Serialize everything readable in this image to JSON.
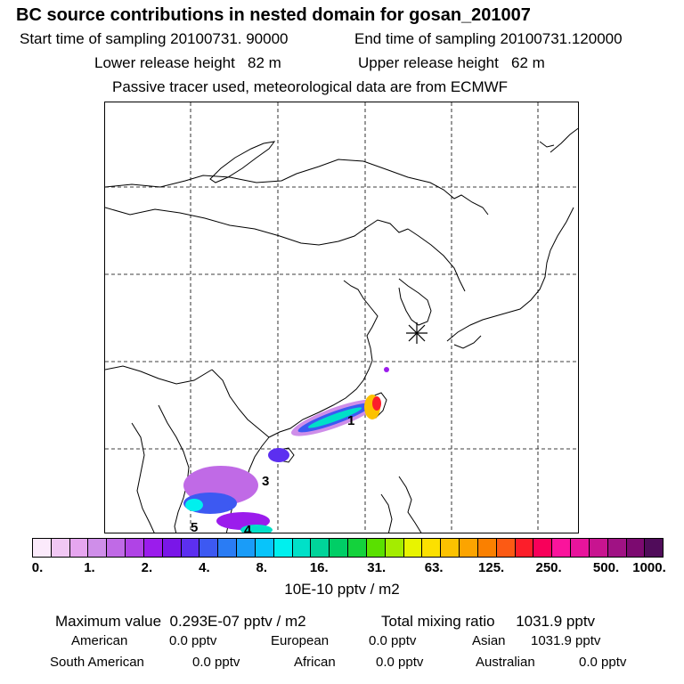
{
  "title": "BC  source contributions in nested domain for gosan_201007",
  "header": {
    "start_label": "Start time of sampling",
    "start_value": "20100731. 90000",
    "end_label": "End time of sampling",
    "end_value": "20100731.120000",
    "lower_label": "Lower release height",
    "lower_value": "82 m",
    "upper_label": "Upper release height",
    "upper_value": "62 m",
    "note": "Passive tracer used, meteorological data are from ECMWF"
  },
  "map": {
    "site_marker": "receptor-asterisk",
    "labels": [
      "1",
      "3",
      "5",
      "4"
    ]
  },
  "colorbar": {
    "colors": [
      "#fbeafb",
      "#f1c8f4",
      "#e6a6ef",
      "#cf8ee9",
      "#c06ae6",
      "#b043e6",
      "#9b1cec",
      "#7a16e8",
      "#5c2ff0",
      "#3d59f2",
      "#2a7cf4",
      "#1a9cf8",
      "#08c4fa",
      "#00f0ee",
      "#00e0c8",
      "#00d49a",
      "#00ce66",
      "#14d23c",
      "#5ae000",
      "#a4ec00",
      "#e8f400",
      "#fce000",
      "#fcc200",
      "#fca400",
      "#fa8000",
      "#fc5a14",
      "#fc1e2a",
      "#f8005a",
      "#fa149c",
      "#e8149c",
      "#c81490",
      "#a01284",
      "#7c0a70",
      "#500c5a"
    ],
    "ticks": [
      "0.",
      "1.",
      "2.",
      "4.",
      "8.",
      "16.",
      "31.",
      "63.",
      "125.",
      "250.",
      "500.",
      "1000."
    ],
    "unit": "10E-10 pptv / m2"
  },
  "summary": {
    "max_label": "Maximum value",
    "max_value": "0.293E-07 pptv / m2",
    "total_label": "Total mixing ratio",
    "total_value": "1031.9 pptv",
    "regions": [
      {
        "name": "American",
        "value": "0.0 pptv"
      },
      {
        "name": "European",
        "value": "0.0 pptv"
      },
      {
        "name": "Asian",
        "value": "1031.9 pptv"
      },
      {
        "name": "South American",
        "value": "0.0 pptv"
      },
      {
        "name": "African",
        "value": "0.0 pptv"
      },
      {
        "name": "Australian",
        "value": "0.0 pptv"
      }
    ]
  }
}
